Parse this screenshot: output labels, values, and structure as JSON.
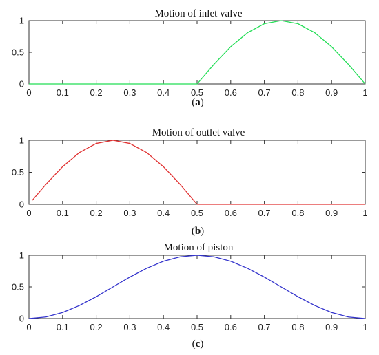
{
  "chart_data": [
    {
      "type": "line",
      "title": "Motion of inlet valve",
      "caption": "(a)",
      "xlabel": "",
      "ylabel": "",
      "xlim": [
        0,
        1
      ],
      "ylim": [
        0,
        1
      ],
      "xticks": [
        "0",
        "0.1",
        "0.2",
        "0.3",
        "0.4",
        "0.5",
        "0.6",
        "0.7",
        "0.8",
        "0.9",
        "1"
      ],
      "yticks": [
        "0",
        "0.5",
        "1"
      ],
      "grid": false,
      "series": [
        {
          "color": "#22dd55",
          "x": [
            0,
            0.5,
            0.55,
            0.6,
            0.65,
            0.7,
            0.75,
            0.8,
            0.85,
            0.9,
            0.95,
            1
          ],
          "y": [
            0,
            0,
            0.309,
            0.588,
            0.809,
            0.951,
            1,
            0.951,
            0.809,
            0.588,
            0.309,
            0
          ]
        }
      ]
    },
    {
      "type": "line",
      "title": "Motion of outlet valve",
      "caption": "(b)",
      "xlabel": "",
      "ylabel": "",
      "xlim": [
        0,
        1
      ],
      "ylim": [
        0,
        1
      ],
      "xticks": [
        "0",
        "0.1",
        "0.2",
        "0.3",
        "0.4",
        "0.5",
        "0.6",
        "0.7",
        "0.8",
        "0.9",
        "1"
      ],
      "yticks": [
        "0",
        "0.5",
        "1"
      ],
      "grid": false,
      "series": [
        {
          "color": "#e03030",
          "x": [
            0.01,
            0.05,
            0.1,
            0.15,
            0.2,
            0.25,
            0.3,
            0.35,
            0.4,
            0.45,
            0.5,
            1
          ],
          "y": [
            0.063,
            0.309,
            0.588,
            0.809,
            0.951,
            1,
            0.951,
            0.809,
            0.588,
            0.309,
            0,
            0
          ]
        }
      ]
    },
    {
      "type": "line",
      "title": "Motion of piston",
      "caption": "(c)",
      "xlabel": "",
      "ylabel": "",
      "xlim": [
        0,
        1
      ],
      "ylim": [
        0,
        1
      ],
      "xticks": [
        "0",
        "0.1",
        "0.2",
        "0.3",
        "0.4",
        "0.5",
        "0.6",
        "0.7",
        "0.8",
        "0.9",
        "1"
      ],
      "yticks": [
        "0",
        "0.5",
        "1"
      ],
      "grid": false,
      "series": [
        {
          "color": "#3333cc",
          "x": [
            0,
            0.05,
            0.1,
            0.15,
            0.2,
            0.25,
            0.3,
            0.35,
            0.4,
            0.45,
            0.5,
            0.55,
            0.6,
            0.65,
            0.7,
            0.75,
            0.8,
            0.85,
            0.9,
            0.95,
            1
          ],
          "y": [
            0,
            0.024,
            0.095,
            0.206,
            0.345,
            0.5,
            0.655,
            0.794,
            0.905,
            0.976,
            1,
            0.976,
            0.905,
            0.794,
            0.655,
            0.5,
            0.345,
            0.206,
            0.095,
            0.024,
            0
          ]
        }
      ]
    }
  ]
}
